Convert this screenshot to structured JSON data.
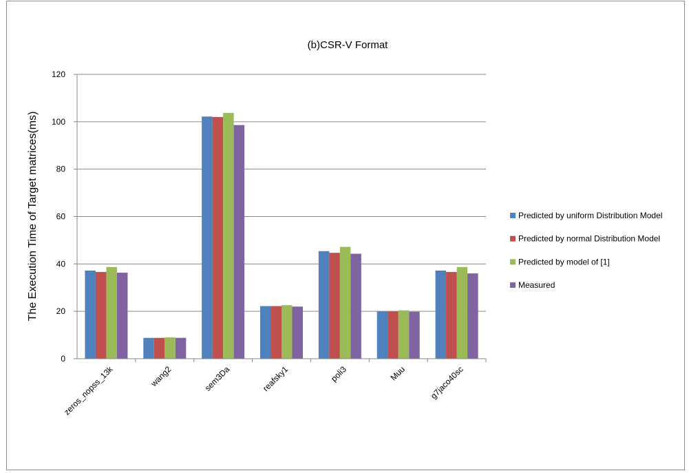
{
  "chart_data": {
    "type": "bar",
    "title": "(b)CSR-V Format",
    "xlabel": "",
    "ylabel": "The Execution Time of Target matrices(ms)",
    "ylim": [
      0,
      120
    ],
    "yticks": [
      0,
      20,
      40,
      60,
      80,
      100,
      120
    ],
    "grid": true,
    "legend_position": "right",
    "categories": [
      "zeros_nopss_13k",
      "wang2",
      "sem3Da",
      "reafsky1",
      "poli3",
      "Muu",
      "g7jaco40sc"
    ],
    "series": [
      {
        "name": "Predicted by uniform Distribution Model",
        "color": "#4f81bd",
        "values": [
          37.2,
          8.8,
          102.2,
          22.2,
          45.4,
          19.9,
          37.2
        ]
      },
      {
        "name": "Predicted by normal Distribution Model",
        "color": "#c0504d",
        "values": [
          36.6,
          8.8,
          102.0,
          22.2,
          44.7,
          19.9,
          36.6
        ]
      },
      {
        "name": "Predicted by model of [1]",
        "color": "#9bbb59",
        "values": [
          38.7,
          9.0,
          103.7,
          22.6,
          47.2,
          20.4,
          38.7
        ]
      },
      {
        "name": "Measured",
        "color": "#8064a2",
        "values": [
          36.3,
          8.8,
          98.6,
          22.0,
          44.3,
          19.8,
          36.0
        ]
      }
    ]
  }
}
